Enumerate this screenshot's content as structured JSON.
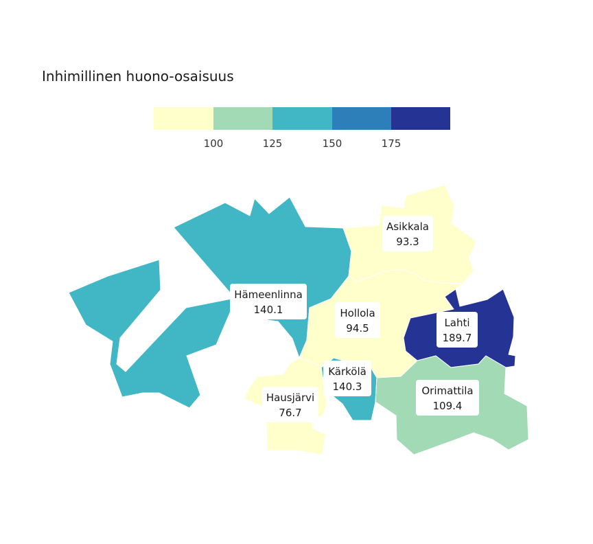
{
  "legend": {
    "title": "Inhimillinen huono-osaisuus",
    "ticks": [
      "100",
      "125",
      "150",
      "175"
    ],
    "colors": [
      "#ffffcc",
      "#a1dab4",
      "#41b6c4",
      "#2c7fb8",
      "#253494"
    ]
  },
  "regions": [
    {
      "name": "Hämeenlinna",
      "value": "140.1",
      "color": "#41b6c4"
    },
    {
      "name": "Asikkala",
      "value": "93.3",
      "color": "#ffffcc"
    },
    {
      "name": "Hollola",
      "value": "94.5",
      "color": "#ffffcc"
    },
    {
      "name": "Lahti",
      "value": "189.7",
      "color": "#253494"
    },
    {
      "name": "Kärkölä",
      "value": "140.3",
      "color": "#41b6c4"
    },
    {
      "name": "Orimattila",
      "value": "109.4",
      "color": "#a1dab4"
    },
    {
      "name": "Hausjärvi",
      "value": "76.7",
      "color": "#ffffcc"
    }
  ]
}
